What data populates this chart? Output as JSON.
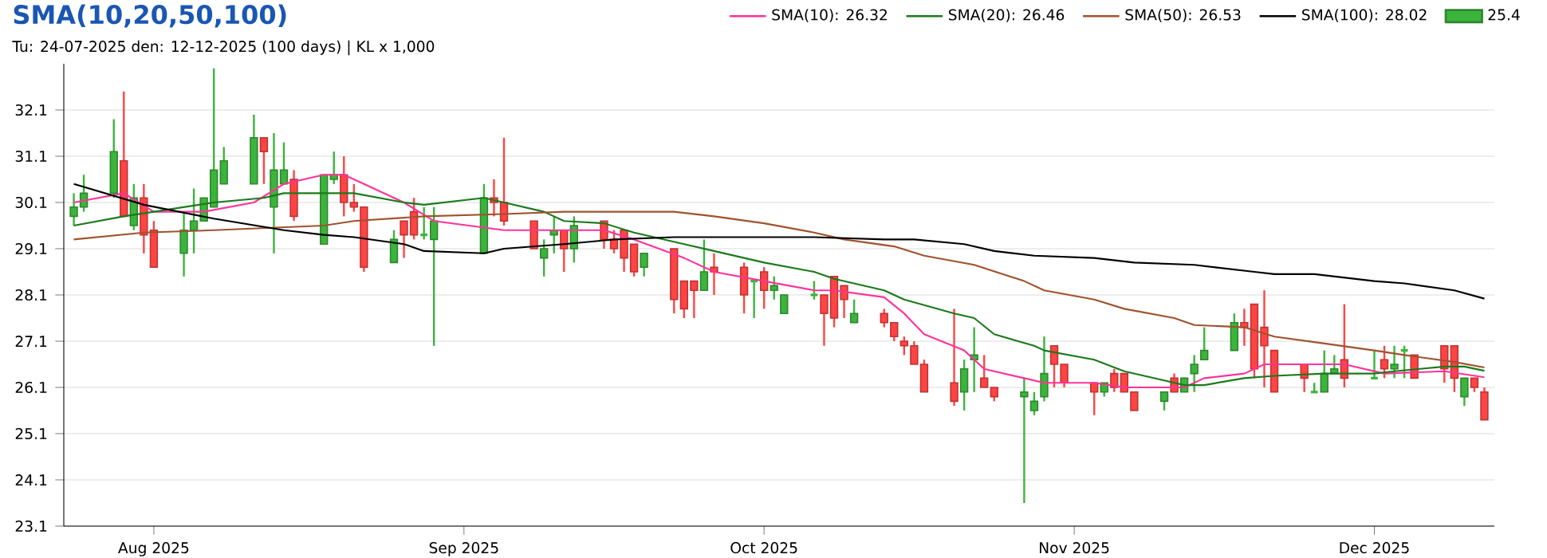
{
  "chart_data": {
    "type": "candlestick",
    "title": "SMA(10,20,50,100)",
    "subtitle": "Tu: 24-07-2025 den: 12-12-2025 (100 days) | KL x 1,000",
    "xlim": [
      "2025-07-23",
      "2025-12-13"
    ],
    "ylim": [
      23.1,
      33.1
    ],
    "xticks": [
      {
        "value": "2025-08-01",
        "label": "Aug 2025"
      },
      {
        "value": "2025-09-01",
        "label": "Sep 2025"
      },
      {
        "value": "2025-10-01",
        "label": "Oct 2025"
      },
      {
        "value": "2025-11-01",
        "label": "Nov 2025"
      },
      {
        "value": "2025-12-01",
        "label": "Dec 2025"
      }
    ],
    "yticks": [
      23.1,
      24.1,
      25.1,
      26.1,
      27.1,
      28.1,
      29.1,
      30.1,
      31.1,
      32.1
    ],
    "grid": "y",
    "legend": "top right",
    "series": [
      {
        "name": "25.4",
        "color": "#3cb43c",
        "x": [
          "2025-07-24",
          "2025-07-25",
          "2025-07-28",
          "2025-07-29",
          "2025-07-30",
          "2025-07-31",
          "2025-08-01",
          "2025-08-04",
          "2025-08-05",
          "2025-08-06",
          "2025-08-07",
          "2025-08-08",
          "2025-08-11",
          "2025-08-12",
          "2025-08-13",
          "2025-08-14",
          "2025-08-15",
          "2025-08-18",
          "2025-08-19",
          "2025-08-20",
          "2025-08-21",
          "2025-08-22",
          "2025-08-25",
          "2025-08-26",
          "2025-08-27",
          "2025-08-28",
          "2025-08-29",
          "2025-09-03",
          "2025-09-04",
          "2025-09-05",
          "2025-09-08",
          "2025-09-09",
          "2025-09-10",
          "2025-09-11",
          "2025-09-12",
          "2025-09-15",
          "2025-09-16",
          "2025-09-17",
          "2025-09-18",
          "2025-09-19",
          "2025-09-22",
          "2025-09-23",
          "2025-09-24",
          "2025-09-25",
          "2025-09-26",
          "2025-09-29",
          "2025-09-30",
          "2025-10-01",
          "2025-10-02",
          "2025-10-03",
          "2025-10-06",
          "2025-10-07",
          "2025-10-08",
          "2025-10-09",
          "2025-10-10",
          "2025-10-13",
          "2025-10-14",
          "2025-10-15",
          "2025-10-16",
          "2025-10-17",
          "2025-10-20",
          "2025-10-21",
          "2025-10-22",
          "2025-10-23",
          "2025-10-24",
          "2025-10-27",
          "2025-10-28",
          "2025-10-29",
          "2025-10-30",
          "2025-10-31",
          "2025-11-03",
          "2025-11-04",
          "2025-11-05",
          "2025-11-06",
          "2025-11-07",
          "2025-11-10",
          "2025-11-11",
          "2025-11-12",
          "2025-11-13",
          "2025-11-14",
          "2025-11-17",
          "2025-11-18",
          "2025-11-19",
          "2025-11-20",
          "2025-11-21",
          "2025-11-24",
          "2025-11-25",
          "2025-11-26",
          "2025-11-27",
          "2025-11-28",
          "2025-12-01",
          "2025-12-02",
          "2025-12-03",
          "2025-12-04",
          "2025-12-05",
          "2025-12-08",
          "2025-12-09",
          "2025-12-10",
          "2025-12-11",
          "2025-12-12"
        ],
        "ohlc": [
          [
            29.8,
            30.3,
            29.6,
            30.0
          ],
          [
            30.0,
            30.7,
            29.9,
            30.3
          ],
          [
            30.3,
            31.9,
            30.2,
            31.2
          ],
          [
            31.0,
            32.5,
            29.8,
            29.8
          ],
          [
            29.6,
            30.5,
            29.5,
            30.2
          ],
          [
            30.2,
            30.5,
            29.0,
            29.4
          ],
          [
            29.5,
            29.7,
            28.7,
            28.7
          ],
          [
            29.0,
            29.9,
            28.5,
            29.5
          ],
          [
            29.5,
            30.4,
            29.0,
            29.7
          ],
          [
            29.7,
            30.2,
            29.7,
            30.2
          ],
          [
            30.0,
            33.0,
            30.0,
            30.8
          ],
          [
            30.5,
            31.3,
            30.5,
            31.0
          ],
          [
            30.5,
            32.0,
            30.5,
            31.5
          ],
          [
            31.5,
            31.5,
            30.5,
            31.2
          ],
          [
            30.0,
            31.6,
            29.0,
            30.8
          ],
          [
            30.5,
            31.4,
            30.5,
            30.8
          ],
          [
            30.6,
            30.8,
            29.7,
            29.8
          ],
          [
            29.2,
            30.7,
            29.2,
            30.7
          ],
          [
            30.6,
            31.2,
            30.5,
            30.7
          ],
          [
            30.7,
            31.1,
            29.8,
            30.1
          ],
          [
            30.1,
            30.5,
            29.9,
            30.0
          ],
          [
            30.0,
            30.0,
            28.6,
            28.7
          ],
          [
            28.8,
            29.5,
            28.8,
            29.3
          ],
          [
            29.7,
            29.7,
            28.9,
            29.4
          ],
          [
            29.9,
            30.2,
            29.3,
            29.4
          ],
          [
            29.4,
            30.0,
            29.3,
            29.4
          ],
          [
            29.3,
            30.0,
            27.0,
            29.7
          ],
          [
            29.0,
            30.5,
            29.0,
            30.2
          ],
          [
            30.2,
            30.6,
            29.8,
            30.1
          ],
          [
            30.1,
            31.5,
            29.6,
            29.7
          ],
          [
            29.7,
            29.7,
            29.1,
            29.1
          ],
          [
            28.9,
            29.3,
            28.5,
            29.1
          ],
          [
            29.4,
            29.8,
            29.0,
            29.5
          ],
          [
            29.5,
            29.5,
            28.6,
            29.1
          ],
          [
            29.1,
            29.8,
            28.8,
            29.6
          ],
          [
            29.7,
            29.7,
            29.1,
            29.3
          ],
          [
            29.3,
            29.5,
            29.0,
            29.1
          ],
          [
            29.5,
            29.5,
            28.6,
            28.9
          ],
          [
            29.2,
            29.2,
            28.5,
            28.6
          ],
          [
            28.7,
            29.0,
            28.5,
            29.0
          ],
          [
            29.1,
            29.1,
            27.7,
            28.0
          ],
          [
            28.4,
            28.4,
            27.6,
            27.8
          ],
          [
            28.4,
            28.4,
            27.6,
            28.2
          ],
          [
            28.2,
            29.3,
            28.2,
            28.6
          ],
          [
            28.7,
            29.0,
            28.1,
            28.6
          ],
          [
            28.7,
            28.8,
            27.7,
            28.1
          ],
          [
            28.4,
            28.4,
            27.6,
            28.4
          ],
          [
            28.6,
            28.7,
            27.8,
            28.2
          ],
          [
            28.2,
            28.5,
            28.0,
            28.3
          ],
          [
            27.7,
            28.1,
            27.7,
            28.1
          ],
          [
            28.1,
            28.4,
            28.0,
            28.1
          ],
          [
            28.1,
            28.1,
            27.0,
            27.7
          ],
          [
            28.5,
            28.5,
            27.4,
            27.6
          ],
          [
            28.3,
            28.3,
            27.6,
            28.0
          ],
          [
            27.5,
            28.0,
            27.5,
            27.7
          ],
          [
            27.7,
            27.8,
            27.4,
            27.5
          ],
          [
            27.5,
            27.5,
            27.1,
            27.2
          ],
          [
            27.1,
            27.2,
            26.8,
            27.0
          ],
          [
            27.0,
            27.1,
            26.6,
            26.6
          ],
          [
            26.6,
            26.7,
            26.0,
            26.0
          ],
          [
            26.2,
            27.8,
            25.7,
            25.8
          ],
          [
            26.0,
            26.7,
            25.6,
            26.5
          ],
          [
            26.7,
            27.4,
            26.0,
            26.8
          ],
          [
            26.3,
            26.8,
            26.1,
            26.1
          ],
          [
            26.1,
            26.1,
            25.8,
            25.9
          ],
          [
            25.9,
            26.3,
            23.6,
            26.0
          ],
          [
            25.6,
            26.0,
            25.5,
            25.8
          ],
          [
            25.9,
            27.2,
            25.8,
            26.4
          ],
          [
            27.0,
            27.0,
            26.1,
            26.6
          ],
          [
            26.6,
            26.6,
            26.1,
            26.2
          ],
          [
            26.2,
            26.2,
            25.5,
            26.0
          ],
          [
            26.0,
            26.2,
            25.9,
            26.2
          ],
          [
            26.4,
            26.5,
            26.0,
            26.1
          ],
          [
            26.4,
            26.4,
            26.0,
            26.0
          ],
          [
            26.0,
            26.0,
            25.6,
            25.6
          ],
          [
            25.8,
            26.0,
            25.6,
            26.0
          ],
          [
            26.3,
            26.4,
            26.0,
            26.0
          ],
          [
            26.0,
            26.3,
            26.0,
            26.3
          ],
          [
            26.4,
            26.8,
            26.0,
            26.6
          ],
          [
            26.7,
            27.4,
            26.7,
            26.9
          ],
          [
            26.9,
            27.7,
            26.9,
            27.5
          ],
          [
            27.5,
            27.8,
            27.0,
            27.4
          ],
          [
            27.9,
            27.9,
            26.3,
            26.5
          ],
          [
            27.4,
            28.2,
            26.1,
            27.0
          ],
          [
            26.9,
            26.9,
            26.0,
            26.0
          ],
          [
            26.6,
            26.6,
            26.0,
            26.3
          ],
          [
            26.0,
            26.2,
            26.0,
            26.0
          ],
          [
            26.0,
            26.9,
            26.0,
            26.4
          ],
          [
            26.4,
            26.8,
            26.4,
            26.5
          ],
          [
            26.7,
            27.9,
            26.1,
            26.3
          ],
          [
            26.3,
            26.9,
            26.3,
            26.3
          ],
          [
            26.7,
            27.0,
            26.3,
            26.5
          ],
          [
            26.5,
            27.0,
            26.3,
            26.6
          ],
          [
            26.9,
            27.0,
            26.3,
            26.9
          ],
          [
            26.8,
            26.8,
            26.3,
            26.3
          ],
          [
            27.0,
            27.0,
            26.2,
            26.5
          ],
          [
            27.0,
            27.0,
            26.0,
            26.3
          ],
          [
            25.9,
            26.3,
            25.7,
            26.3
          ],
          [
            26.3,
            26.3,
            26.0,
            26.1
          ],
          [
            26.0,
            26.1,
            25.4,
            25.4
          ]
        ],
        "colors": [
          "#3cb43c",
          "#3cb43c",
          "#3cb43c",
          "#ff4444",
          "#3cb43c",
          "#ff4444",
          "#ff4444",
          "#3cb43c",
          "#3cb43c",
          "#3cb43c",
          "#3cb43c",
          "#3cb43c",
          "#3cb43c",
          "#ff4444",
          "#3cb43c",
          "#3cb43c",
          "#ff4444",
          "#3cb43c",
          "#3cb43c",
          "#ff4444",
          "#ff4444",
          "#ff4444",
          "#3cb43c",
          "#ff4444",
          "#ff4444",
          "#3cb43c",
          "#3cb43c",
          "#3cb43c",
          "#ff4444",
          "#ff4444",
          "#ff4444",
          "#3cb43c",
          "#3cb43c",
          "#ff4444",
          "#3cb43c",
          "#ff4444",
          "#ff4444",
          "#ff4444",
          "#ff4444",
          "#3cb43c",
          "#ff4444",
          "#ff4444",
          "#ff4444",
          "#3cb43c",
          "#ff4444",
          "#ff4444",
          "#3cb43c",
          "#ff4444",
          "#3cb43c",
          "#3cb43c",
          "#3cb43c",
          "#ff4444",
          "#ff4444",
          "#ff4444",
          "#3cb43c",
          "#ff4444",
          "#ff4444",
          "#ff4444",
          "#ff4444",
          "#ff4444",
          "#ff4444",
          "#3cb43c",
          "#3cb43c",
          "#ff4444",
          "#ff4444",
          "#3cb43c",
          "#3cb43c",
          "#3cb43c",
          "#ff4444",
          "#ff4444",
          "#ff4444",
          "#3cb43c",
          "#ff4444",
          "#ff4444",
          "#ff4444",
          "#3cb43c",
          "#ff4444",
          "#3cb43c",
          "#3cb43c",
          "#3cb43c",
          "#3cb43c",
          "#ff4444",
          "#ff4444",
          "#ff4444",
          "#ff4444",
          "#ff4444",
          "#3cb43c",
          "#3cb43c",
          "#3cb43c",
          "#ff4444",
          "#3cb43c",
          "#ff4444",
          "#3cb43c",
          "#3cb43c",
          "#ff4444",
          "#ff4444",
          "#ff4444",
          "#3cb43c",
          "#ff4444",
          "#ff4444"
        ]
      },
      {
        "type": "line",
        "name": "SMA(10): 26.32",
        "color": "#ff3399",
        "x": [
          "2025-07-24",
          "2025-07-29",
          "2025-08-01",
          "2025-08-06",
          "2025-08-11",
          "2025-08-14",
          "2025-08-18",
          "2025-08-20",
          "2025-08-22",
          "2025-08-26",
          "2025-08-29",
          "2025-09-05",
          "2025-09-11",
          "2025-09-15",
          "2025-09-18",
          "2025-09-23",
          "2025-09-26",
          "2025-10-01",
          "2025-10-06",
          "2025-10-08",
          "2025-10-13",
          "2025-10-15",
          "2025-10-17",
          "2025-10-21",
          "2025-10-23",
          "2025-10-27",
          "2025-10-29",
          "2025-11-03",
          "2025-11-06",
          "2025-11-12",
          "2025-11-14",
          "2025-11-18",
          "2025-11-20",
          "2025-11-24",
          "2025-11-28",
          "2025-12-02",
          "2025-12-08",
          "2025-12-12"
        ],
        "values": [
          30.1,
          30.3,
          29.9,
          29.9,
          30.1,
          30.5,
          30.7,
          30.7,
          30.5,
          30.1,
          29.7,
          29.5,
          29.5,
          29.5,
          29.3,
          28.9,
          28.6,
          28.4,
          28.2,
          28.2,
          28.05,
          27.7,
          27.25,
          26.9,
          26.5,
          26.3,
          26.2,
          26.2,
          26.1,
          26.1,
          26.3,
          26.4,
          26.6,
          26.6,
          26.6,
          26.4,
          26.45,
          26.32
        ]
      },
      {
        "type": "line",
        "name": "SMA(20): 26.46",
        "color": "#1a7a1a",
        "x": [
          "2025-07-24",
          "2025-07-29",
          "2025-08-01",
          "2025-08-07",
          "2025-08-12",
          "2025-08-14",
          "2025-08-19",
          "2025-08-21",
          "2025-08-26",
          "2025-08-28",
          "2025-09-03",
          "2025-09-05",
          "2025-09-09",
          "2025-09-11",
          "2025-09-15",
          "2025-09-18",
          "2025-09-23",
          "2025-09-26",
          "2025-10-01",
          "2025-10-06",
          "2025-10-08",
          "2025-10-13",
          "2025-10-15",
          "2025-10-20",
          "2025-10-22",
          "2025-10-24",
          "2025-10-28",
          "2025-10-29",
          "2025-11-03",
          "2025-11-06",
          "2025-11-10",
          "2025-11-12",
          "2025-11-14",
          "2025-11-18",
          "2025-11-21",
          "2025-11-26",
          "2025-12-01",
          "2025-12-03",
          "2025-12-08",
          "2025-12-10",
          "2025-12-12"
        ],
        "values": [
          29.6,
          29.8,
          29.9,
          30.1,
          30.2,
          30.3,
          30.3,
          30.3,
          30.1,
          30.05,
          30.2,
          30.1,
          29.9,
          29.7,
          29.65,
          29.45,
          29.2,
          29.05,
          28.8,
          28.6,
          28.45,
          28.2,
          28.0,
          27.7,
          27.6,
          27.25,
          27.0,
          26.9,
          26.7,
          26.45,
          26.25,
          26.15,
          26.15,
          26.3,
          26.35,
          26.4,
          26.4,
          26.45,
          26.55,
          26.55,
          26.46
        ]
      },
      {
        "type": "line",
        "name": "SMA(50): 26.53",
        "color": "#a0522d",
        "x": [
          "2025-07-24",
          "2025-07-31",
          "2025-08-07",
          "2025-08-18",
          "2025-08-21",
          "2025-08-28",
          "2025-09-05",
          "2025-09-11",
          "2025-09-16",
          "2025-09-22",
          "2025-09-26",
          "2025-10-01",
          "2025-10-06",
          "2025-10-09",
          "2025-10-14",
          "2025-10-17",
          "2025-10-22",
          "2025-10-27",
          "2025-10-29",
          "2025-11-03",
          "2025-11-06",
          "2025-11-11",
          "2025-11-13",
          "2025-11-18",
          "2025-11-21",
          "2025-11-26",
          "2025-12-01",
          "2025-12-04",
          "2025-12-09",
          "2025-12-12"
        ],
        "values": [
          29.3,
          29.45,
          29.5,
          29.6,
          29.7,
          29.8,
          29.85,
          29.9,
          29.9,
          29.9,
          29.8,
          29.65,
          29.45,
          29.3,
          29.15,
          28.95,
          28.75,
          28.4,
          28.2,
          28.0,
          27.8,
          27.6,
          27.45,
          27.4,
          27.2,
          27.05,
          26.9,
          26.8,
          26.65,
          26.53
        ]
      },
      {
        "type": "line",
        "name": "SMA(100): 28.02",
        "color": "#000000",
        "x": [
          "2025-07-24",
          "2025-07-31",
          "2025-08-07",
          "2025-08-14",
          "2025-08-18",
          "2025-08-21",
          "2025-08-26",
          "2025-08-28",
          "2025-09-03",
          "2025-09-05",
          "2025-09-11",
          "2025-09-16",
          "2025-09-22",
          "2025-09-29",
          "2025-10-06",
          "2025-10-13",
          "2025-10-16",
          "2025-10-21",
          "2025-10-24",
          "2025-10-28",
          "2025-11-03",
          "2025-11-07",
          "2025-11-13",
          "2025-11-19",
          "2025-11-21",
          "2025-11-25",
          "2025-12-01",
          "2025-12-04",
          "2025-12-09",
          "2025-12-12"
        ],
        "values": [
          30.5,
          30.05,
          29.75,
          29.5,
          29.4,
          29.35,
          29.2,
          29.05,
          29.0,
          29.1,
          29.2,
          29.3,
          29.35,
          29.35,
          29.35,
          29.3,
          29.3,
          29.2,
          29.05,
          28.95,
          28.9,
          28.8,
          28.75,
          28.6,
          28.55,
          28.55,
          28.4,
          28.35,
          28.2,
          28.02
        ]
      }
    ]
  }
}
